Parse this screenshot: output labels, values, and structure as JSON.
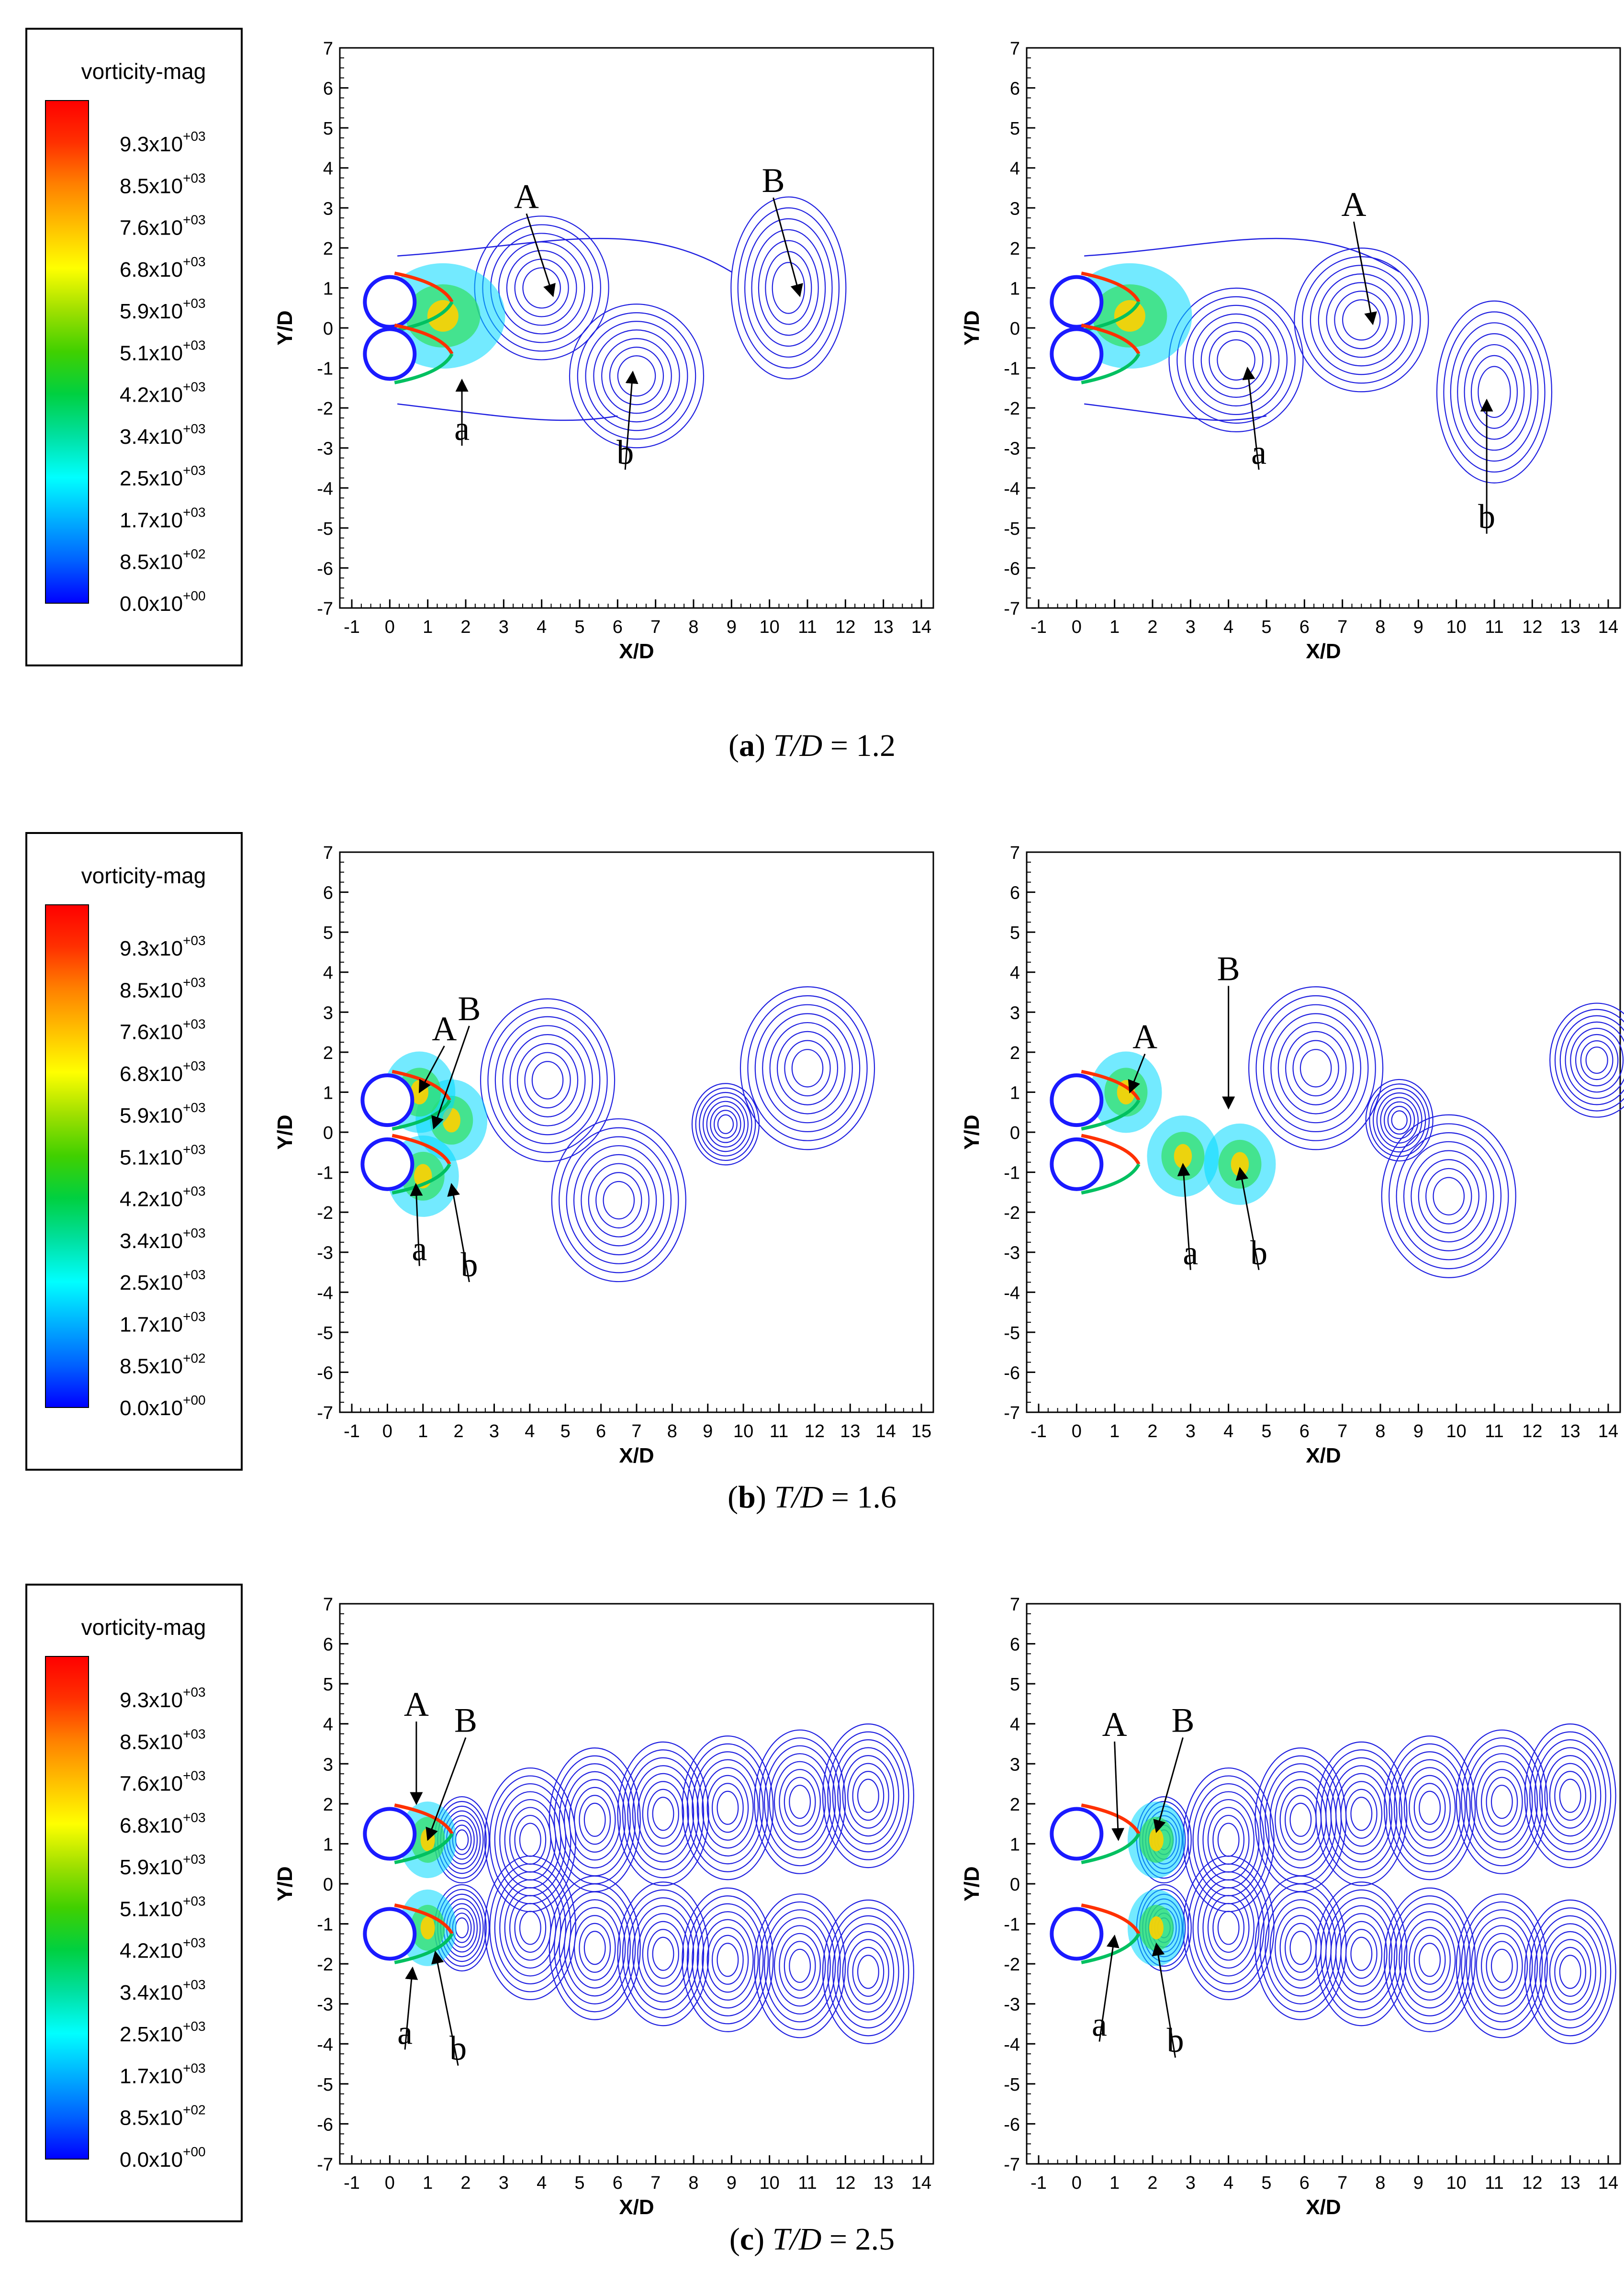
{
  "legend": {
    "title": "vorticity-mag",
    "ticks": [
      {
        "mantissa": "9.3x10",
        "exp": "+03"
      },
      {
        "mantissa": "8.5x10",
        "exp": "+03"
      },
      {
        "mantissa": "7.6x10",
        "exp": "+03"
      },
      {
        "mantissa": "6.8x10",
        "exp": "+03"
      },
      {
        "mantissa": "5.9x10",
        "exp": "+03"
      },
      {
        "mantissa": "5.1x10",
        "exp": "+03"
      },
      {
        "mantissa": "4.2x10",
        "exp": "+03"
      },
      {
        "mantissa": "3.4x10",
        "exp": "+03"
      },
      {
        "mantissa": "2.5x10",
        "exp": "+03"
      },
      {
        "mantissa": "1.7x10",
        "exp": "+03"
      },
      {
        "mantissa": "8.5x10",
        "exp": "+02"
      },
      {
        "mantissa": "0.0x10",
        "exp": "+00"
      }
    ],
    "colorscale": [
      "#0000ff",
      "#0060ff",
      "#00b0ff",
      "#00ffff",
      "#00e0a0",
      "#00d040",
      "#40d000",
      "#a0e000",
      "#ffff00",
      "#ffc000",
      "#ff8000",
      "#ff3000",
      "#ff0000"
    ]
  },
  "axes": {
    "xlabel": "X/D",
    "ylabel": "Y/D",
    "yticks": [
      "7",
      "6",
      "5",
      "4",
      "3",
      "2",
      "1",
      "0",
      "-1",
      "-2",
      "-3",
      "-4",
      "-5",
      "-6",
      "-7"
    ],
    "xticks_14": [
      "-1",
      "0",
      "1",
      "2",
      "3",
      "4",
      "5",
      "6",
      "7",
      "8",
      "9",
      "10",
      "11",
      "12",
      "13",
      "14"
    ],
    "xticks_15": [
      "-1",
      "0",
      "1",
      "2",
      "3",
      "4",
      "5",
      "6",
      "7",
      "8",
      "9",
      "10",
      "11",
      "12",
      "13",
      "14",
      "15"
    ]
  },
  "colors": {
    "contour": "#2020e0",
    "axis": "#000000"
  },
  "rows": [
    {
      "caption_letter": "a",
      "caption_ratio": "1.2",
      "left_labels": [
        "A",
        "B",
        "a",
        "b"
      ],
      "right_labels": [
        "A",
        "a",
        "b"
      ]
    },
    {
      "caption_letter": "b",
      "caption_ratio": "1.6",
      "left_labels": [
        "A",
        "B",
        "a",
        "b"
      ],
      "right_labels": [
        "A",
        "B",
        "a",
        "b"
      ]
    },
    {
      "caption_letter": "c",
      "caption_ratio": "2.5",
      "left_labels": [
        "A",
        "B",
        "a",
        "b"
      ],
      "right_labels": [
        "A",
        "B",
        "a",
        "b"
      ]
    }
  ],
  "caption_var": "T/D"
}
